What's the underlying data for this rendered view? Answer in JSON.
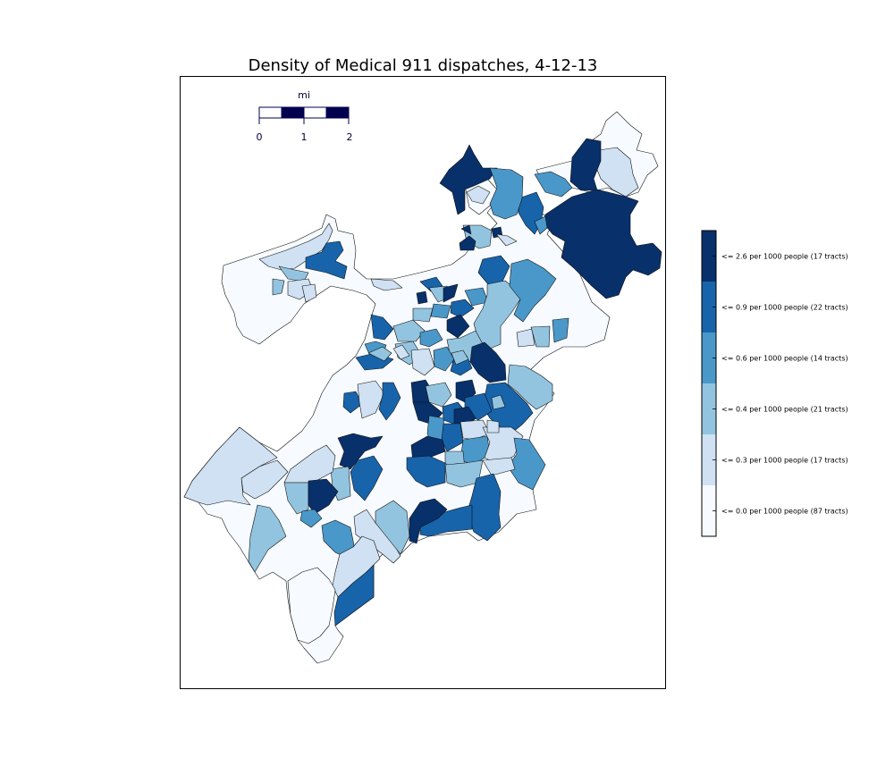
{
  "title": "Density of Medical 911 dispatches, 4-12-13",
  "scalebar": {
    "unit": "mi",
    "ticks": [
      "0",
      "1",
      "2"
    ],
    "colors": [
      "#ffffff",
      "#00004f"
    ]
  },
  "legend": {
    "classes": [
      {
        "label": "<= 0.0 per 1000 people (87 tracts)",
        "color": "#f7fbff",
        "tracts": 87,
        "max": 0.0
      },
      {
        "label": "<= 0.3 per 1000 people (17 tracts)",
        "color": "#cfe1f2",
        "tracts": 17,
        "max": 0.3
      },
      {
        "label": "<= 0.4 per 1000 people (21 tracts)",
        "color": "#93c4df",
        "tracts": 21,
        "max": 0.4
      },
      {
        "label": "<= 0.6 per 1000 people (14 tracts)",
        "color": "#4a98c9",
        "tracts": 14,
        "max": 0.6
      },
      {
        "label": "<= 0.9 per 1000 people (22 tracts)",
        "color": "#1764ab",
        "tracts": 22,
        "max": 0.9
      },
      {
        "label": "<= 2.6 per 1000 people (17 tracts)",
        "color": "#08306b",
        "tracts": 17,
        "max": 2.6
      }
    ]
  }
}
